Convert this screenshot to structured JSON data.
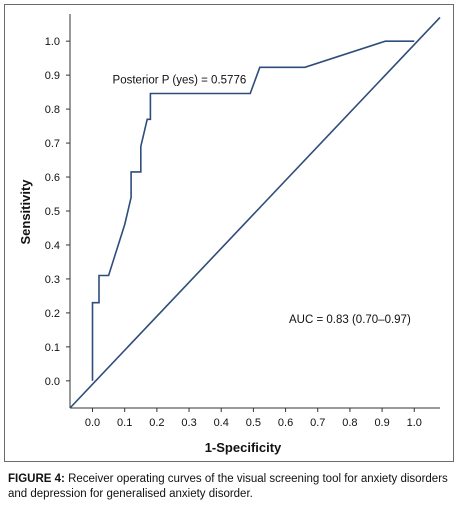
{
  "chart_data": {
    "type": "line",
    "xlabel": "1-Specificity",
    "ylabel": "Sensitivity",
    "xlim": [
      -0.07,
      1.08
    ],
    "ylim": [
      -0.08,
      1.08
    ],
    "xticks": [
      "0.0",
      "0.1",
      "0.2",
      "0.3",
      "0.4",
      "0.5",
      "0.6",
      "0.7",
      "0.8",
      "0.9",
      "1.0"
    ],
    "yticks": [
      "0.0",
      "0.1",
      "0.2",
      "0.3",
      "0.4",
      "0.5",
      "0.6",
      "0.7",
      "0.8",
      "0.9",
      "1.0"
    ],
    "grid": false,
    "line_color": "#2f4d7a",
    "series": [
      {
        "x": [
          0.0,
          0.0,
          0.01,
          0.02,
          0.02,
          0.05,
          0.1,
          0.12,
          0.12,
          0.15,
          0.15,
          0.16,
          0.17,
          0.17,
          0.18,
          0.18,
          0.3,
          0.49,
          0.52,
          0.66,
          0.91,
          1.0
        ],
        "y": [
          0.0,
          0.23,
          0.23,
          0.23,
          0.31,
          0.31,
          0.46,
          0.54,
          0.615,
          0.615,
          0.69,
          0.73,
          0.77,
          0.77,
          0.77,
          0.846,
          0.846,
          0.846,
          0.923,
          0.923,
          1.0,
          1.0
        ]
      },
      {
        "x": [
          -0.07,
          1.08
        ],
        "y": [
          -0.08,
          1.07
        ]
      }
    ],
    "annotations": [
      {
        "text": "Posterior P (yes) = 0.5776",
        "x": 0.27,
        "y": 0.875
      },
      {
        "text": "AUC = 0.83 (0.70–0.97)",
        "x": 0.8,
        "y": 0.17
      }
    ]
  },
  "caption": {
    "label": "FIGURE 4:",
    "text": "Receiver operating curves of the visual screening tool for anxiety disorders and depression for generalised anxiety disorder."
  }
}
